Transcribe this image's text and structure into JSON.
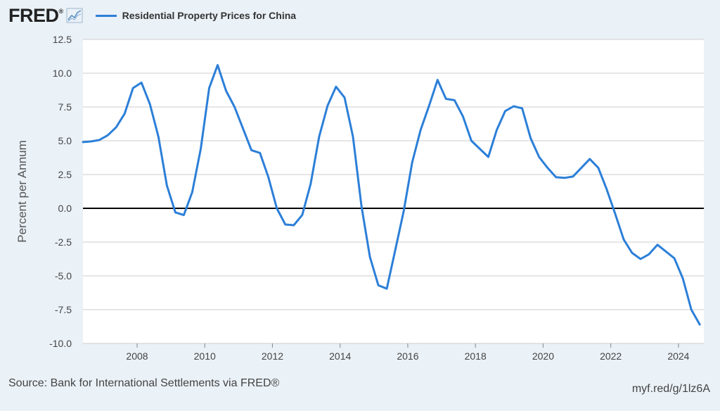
{
  "branding": {
    "logo_text": "FRED",
    "logo_mark": "®"
  },
  "colors": {
    "background": "#eaf1f7",
    "plot_background": "#ffffff",
    "series_line": "#2c7fd8",
    "gridline": "#cccccc",
    "zero_line": "#000000",
    "text": "#444444"
  },
  "chart_data": {
    "type": "line",
    "title": "",
    "xlabel": "",
    "ylabel": "Percent per Annum",
    "grid": true,
    "legend_placement": "top-left",
    "xlim": [
      2006.4,
      2024.75
    ],
    "ylim": [
      -10.0,
      12.5
    ],
    "xticks": [
      2008,
      2010,
      2012,
      2014,
      2016,
      2018,
      2020,
      2022,
      2024
    ],
    "xtick_labels": [
      "2008",
      "2010",
      "2012",
      "2014",
      "2016",
      "2018",
      "2020",
      "2022",
      "2024"
    ],
    "yticks": [
      -10.0,
      -7.5,
      -5.0,
      -2.5,
      0.0,
      2.5,
      5.0,
      7.5,
      10.0,
      12.5
    ],
    "ytick_labels": [
      "-10.0",
      "-7.5",
      "-5.0",
      "-2.5",
      "0.0",
      "2.5",
      "5.0",
      "7.5",
      "10.0",
      "12.5"
    ],
    "series": [
      {
        "name": "Residential Property Prices for China",
        "x": [
          2006.38,
          2006.63,
          2006.88,
          2007.13,
          2007.38,
          2007.63,
          2007.88,
          2008.13,
          2008.38,
          2008.63,
          2008.88,
          2009.13,
          2009.38,
          2009.63,
          2009.88,
          2010.13,
          2010.38,
          2010.63,
          2010.88,
          2011.13,
          2011.38,
          2011.63,
          2011.88,
          2012.13,
          2012.38,
          2012.63,
          2012.88,
          2013.13,
          2013.38,
          2013.63,
          2013.88,
          2014.13,
          2014.38,
          2014.63,
          2014.88,
          2015.13,
          2015.38,
          2015.63,
          2015.88,
          2016.13,
          2016.38,
          2016.63,
          2016.88,
          2017.13,
          2017.38,
          2017.63,
          2017.88,
          2018.13,
          2018.38,
          2018.63,
          2018.88,
          2019.13,
          2019.38,
          2019.63,
          2019.88,
          2020.13,
          2020.38,
          2020.63,
          2020.88,
          2021.13,
          2021.38,
          2021.63,
          2021.88,
          2022.13,
          2022.38,
          2022.63,
          2022.88,
          2023.13,
          2023.38,
          2023.63,
          2023.88,
          2024.13,
          2024.38,
          2024.63
        ],
        "values": [
          4.9,
          4.95,
          5.05,
          5.4,
          6.0,
          7.0,
          8.9,
          9.3,
          7.7,
          5.3,
          1.7,
          -0.3,
          -0.5,
          1.2,
          4.4,
          8.9,
          10.6,
          8.7,
          7.5,
          5.9,
          4.3,
          4.1,
          2.3,
          0.0,
          -1.2,
          -1.25,
          -0.5,
          1.8,
          5.3,
          7.6,
          9.0,
          8.2,
          5.3,
          0.2,
          -3.6,
          -5.7,
          -5.95,
          -3.1,
          -0.2,
          3.4,
          5.8,
          7.6,
          9.5,
          8.1,
          8.0,
          6.8,
          5.0,
          4.4,
          3.8,
          5.8,
          7.2,
          7.55,
          7.4,
          5.2,
          3.8,
          3.0,
          2.3,
          2.25,
          2.35,
          3.0,
          3.65,
          3.0,
          1.4,
          -0.4,
          -2.3,
          -3.3,
          -3.75,
          -3.4,
          -2.7,
          -3.2,
          -3.7,
          -5.2,
          -7.5,
          -8.6
        ]
      }
    ]
  },
  "footer": {
    "source": "Source: Bank for International Settlements via FRED®",
    "link": "myf.red/g/1lz6A"
  }
}
